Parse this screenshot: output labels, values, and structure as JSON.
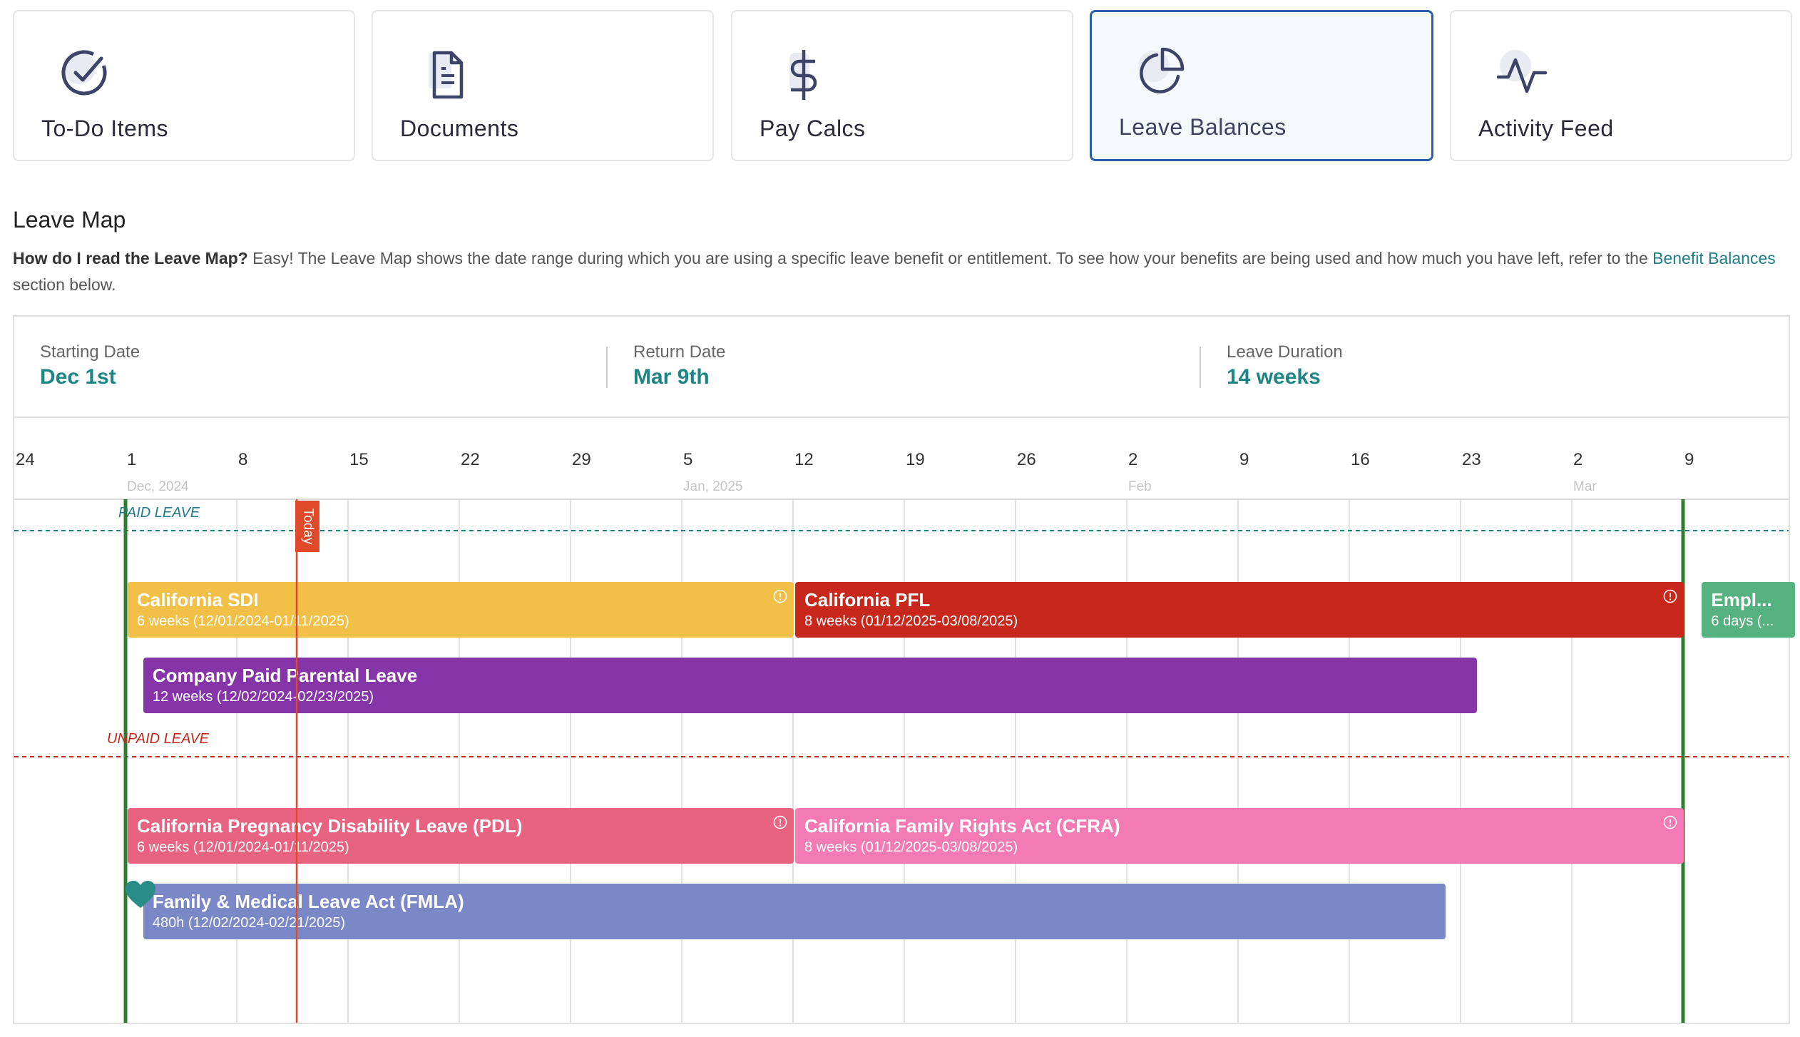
{
  "tabs": [
    {
      "label": "To-Do Items",
      "icon": "check-circle-icon",
      "active": false
    },
    {
      "label": "Documents",
      "icon": "document-icon",
      "active": false
    },
    {
      "label": "Pay Calcs",
      "icon": "dollar-icon",
      "active": false
    },
    {
      "label": "Leave Balances",
      "icon": "pie-chart-icon",
      "active": true
    },
    {
      "label": "Activity Feed",
      "icon": "activity-icon",
      "active": false
    }
  ],
  "leave_map": {
    "title": "Leave Map",
    "intro_question": "How do I read the Leave Map?",
    "intro_text": " Easy! The Leave Map shows the date range during which you are using a specific leave benefit or entitlement. To see how your benefits are being used and how much you have left, refer to the ",
    "intro_link": "Benefit Balances",
    "intro_tail": " section below."
  },
  "summary": {
    "starting_label": "Starting Date",
    "starting_value": "Dec 1st",
    "return_label": "Return Date",
    "return_value": "Mar 9th",
    "duration_label": "Leave Duration",
    "duration_value": "14 weeks"
  },
  "timeline": {
    "week_labels": [
      "24",
      "1",
      "8",
      "15",
      "22",
      "29",
      "5",
      "12",
      "19",
      "26",
      "2",
      "9",
      "16",
      "23",
      "2",
      "9"
    ],
    "month_labels": [
      {
        "text": "Dec, 2024",
        "col": 1
      },
      {
        "text": "Jan, 2025",
        "col": 6
      },
      {
        "text": "Feb",
        "col": 10
      },
      {
        "text": "Mar",
        "col": 14
      }
    ],
    "paid_label": "PAID LEAVE",
    "unpaid_label": "UNPAID LEAVE",
    "today_label": "Today",
    "start_week": 1,
    "end_week": 15,
    "today_week": 2.5,
    "colors": {
      "grid": "#d9d9d9",
      "green": "#2f7d32",
      "today": "#e0482a",
      "paid": "#1e7d86",
      "unpaid": "#c7281a"
    }
  },
  "bars": [
    {
      "title": "California SDI",
      "sub": "6 weeks (12/01/2024-01/11/2025)",
      "color": "#f2bf47",
      "start": 1,
      "end": 7,
      "row": 0,
      "info": true
    },
    {
      "title": "California PFL",
      "sub": "8 weeks (01/12/2025-03/08/2025)",
      "color": "#c8281b",
      "start": 7,
      "end": 15,
      "row": 0,
      "info": true
    },
    {
      "title": "Empl...",
      "sub": "6 days (...",
      "color": "#55b27e",
      "start": 15.15,
      "end": 16,
      "row": 0,
      "info": false
    },
    {
      "title": "Company Paid Parental Leave",
      "sub": "12 weeks (12/02/2024-02/23/2025)",
      "color": "#8635a8",
      "start": 1.14,
      "end": 13.14,
      "row": 1,
      "info": false
    },
    {
      "title": "California Pregnancy Disability Leave (PDL)",
      "sub": "6 weeks (12/01/2024-01/11/2025)",
      "color": "#e8637f",
      "start": 1,
      "end": 7,
      "row": 2,
      "info": true
    },
    {
      "title": "California Family Rights Act (CFRA)",
      "sub": "8 weeks (01/12/2025-03/08/2025)",
      "color": "#f37ab2",
      "start": 7,
      "end": 15,
      "row": 2,
      "info": true
    },
    {
      "title": "Family & Medical Leave Act (FMLA)",
      "sub": "480h (12/02/2024-02/21/2025)",
      "color": "#7a88c8",
      "start": 1.14,
      "end": 12.86,
      "row": 3,
      "info": false
    }
  ]
}
